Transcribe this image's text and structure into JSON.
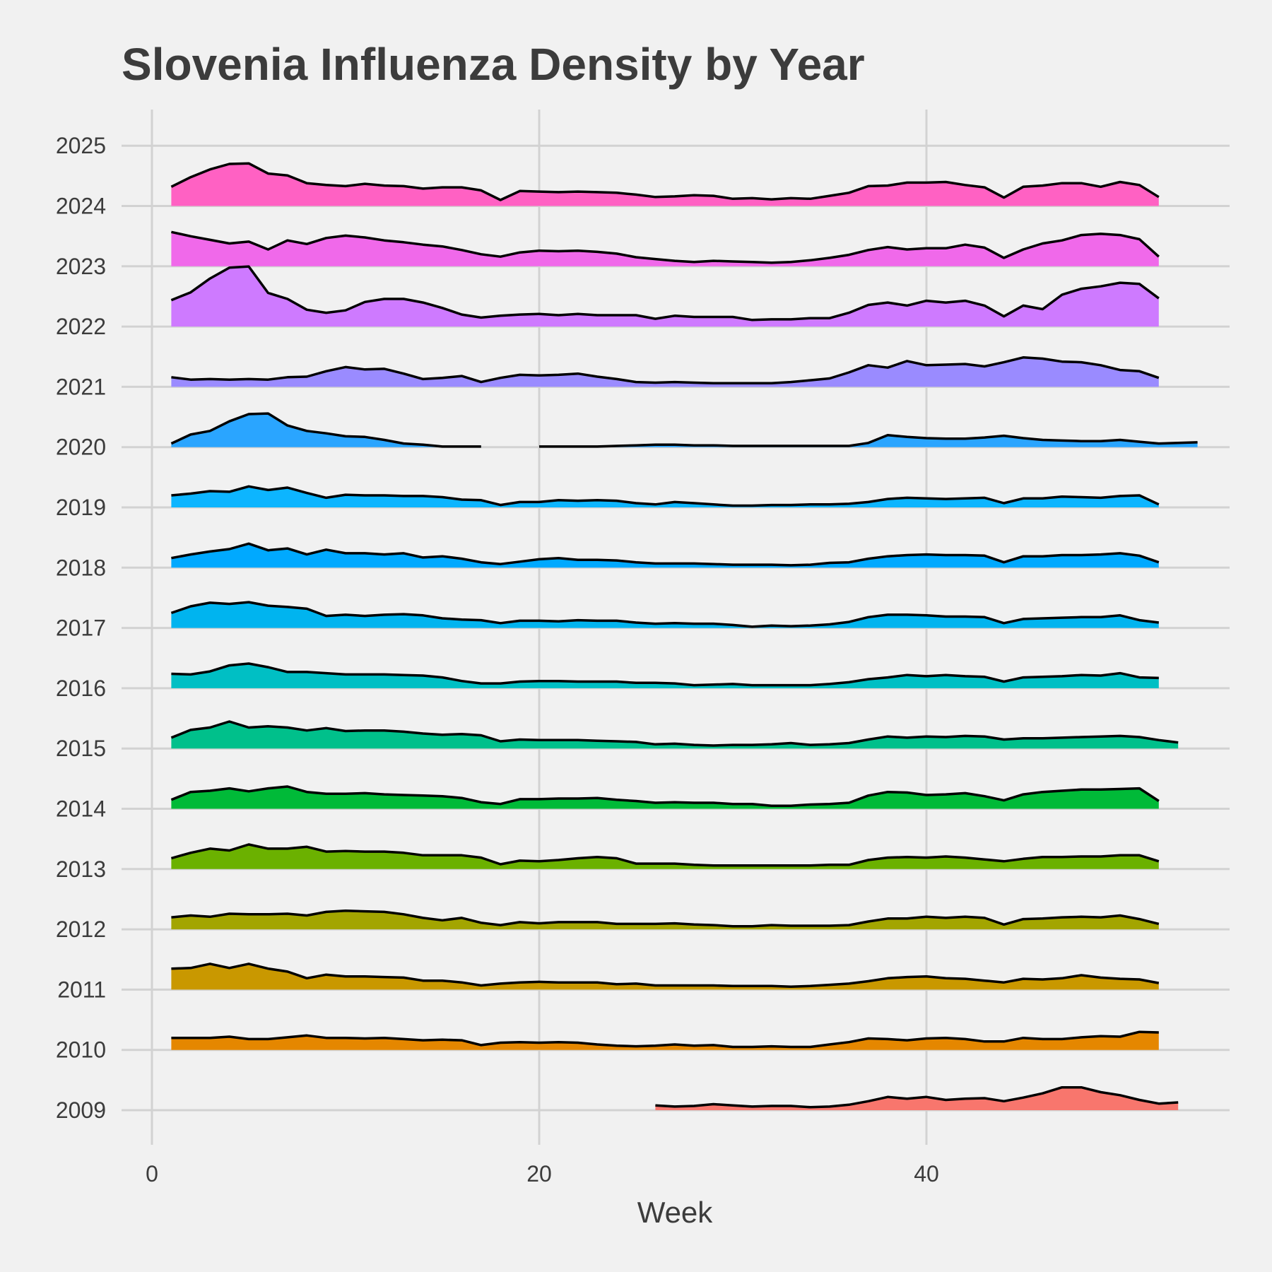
{
  "chart_data": {
    "type": "area",
    "subtype": "ridgeline",
    "title": "Slovenia Influenza Density by Year",
    "xlabel": "Week",
    "ylabel": "",
    "xlim": [
      0,
      55
    ],
    "ylim": [
      2008.4,
      2025.7
    ],
    "x_ticks": [
      "0",
      "20",
      "40"
    ],
    "y_ticks": [
      "2009",
      "2010",
      "2011",
      "2012",
      "2013",
      "2014",
      "2015",
      "2016",
      "2017",
      "2018",
      "2019",
      "2020",
      "2021",
      "2022",
      "2023",
      "2024",
      "2025"
    ],
    "grid": true,
    "legend": "none",
    "series": [
      {
        "year": 2009,
        "color": "#F8766D",
        "start_week": 26,
        "values": [
          0.08,
          0.06,
          0.07,
          0.1,
          0.08,
          0.06,
          0.07,
          0.07,
          0.05,
          0.06,
          0.09,
          0.15,
          0.22,
          0.19,
          0.22,
          0.17,
          0.19,
          0.2,
          0.15,
          0.21,
          0.28,
          0.38,
          0.38,
          0.3,
          0.25,
          0.17,
          0.11,
          0.13
        ]
      },
      {
        "year": 2010,
        "color": "#E58700",
        "start_week": 1,
        "values": [
          0.2,
          0.2,
          0.2,
          0.22,
          0.18,
          0.18,
          0.21,
          0.24,
          0.2,
          0.2,
          0.19,
          0.2,
          0.18,
          0.16,
          0.17,
          0.16,
          0.08,
          0.12,
          0.13,
          0.12,
          0.13,
          0.12,
          0.09,
          0.07,
          0.06,
          0.07,
          0.09,
          0.07,
          0.08,
          0.05,
          0.05,
          0.06,
          0.05,
          0.05,
          0.09,
          0.13,
          0.19,
          0.18,
          0.16,
          0.19,
          0.2,
          0.18,
          0.14,
          0.14,
          0.2,
          0.18,
          0.18,
          0.21,
          0.23,
          0.22,
          0.3,
          0.29
        ]
      },
      {
        "year": 2011,
        "color": "#C99800",
        "start_week": 1,
        "values": [
          0.35,
          0.36,
          0.43,
          0.36,
          0.43,
          0.35,
          0.3,
          0.19,
          0.25,
          0.22,
          0.22,
          0.21,
          0.2,
          0.15,
          0.15,
          0.12,
          0.07,
          0.1,
          0.12,
          0.13,
          0.12,
          0.12,
          0.12,
          0.09,
          0.1,
          0.07,
          0.07,
          0.07,
          0.07,
          0.06,
          0.06,
          0.06,
          0.05,
          0.06,
          0.08,
          0.1,
          0.14,
          0.19,
          0.21,
          0.22,
          0.19,
          0.18,
          0.15,
          0.12,
          0.18,
          0.17,
          0.19,
          0.24,
          0.2,
          0.18,
          0.17,
          0.11
        ]
      },
      {
        "year": 2012,
        "color": "#A3A500",
        "start_week": 1,
        "values": [
          0.2,
          0.23,
          0.21,
          0.26,
          0.25,
          0.25,
          0.26,
          0.23,
          0.29,
          0.31,
          0.3,
          0.29,
          0.25,
          0.19,
          0.15,
          0.19,
          0.11,
          0.07,
          0.12,
          0.1,
          0.12,
          0.12,
          0.12,
          0.09,
          0.09,
          0.09,
          0.1,
          0.08,
          0.07,
          0.05,
          0.05,
          0.07,
          0.06,
          0.06,
          0.06,
          0.07,
          0.13,
          0.18,
          0.18,
          0.21,
          0.19,
          0.21,
          0.19,
          0.08,
          0.17,
          0.18,
          0.2,
          0.21,
          0.2,
          0.23,
          0.17,
          0.09
        ]
      },
      {
        "year": 2013,
        "color": "#6BB100",
        "start_week": 1,
        "values": [
          0.18,
          0.27,
          0.34,
          0.31,
          0.41,
          0.34,
          0.34,
          0.37,
          0.29,
          0.3,
          0.29,
          0.29,
          0.27,
          0.23,
          0.23,
          0.23,
          0.19,
          0.08,
          0.14,
          0.13,
          0.15,
          0.18,
          0.2,
          0.18,
          0.09,
          0.09,
          0.09,
          0.07,
          0.06,
          0.06,
          0.06,
          0.06,
          0.06,
          0.06,
          0.07,
          0.07,
          0.15,
          0.19,
          0.2,
          0.19,
          0.21,
          0.19,
          0.16,
          0.13,
          0.17,
          0.2,
          0.2,
          0.21,
          0.21,
          0.23,
          0.23,
          0.13
        ]
      },
      {
        "year": 2014,
        "color": "#00BA38",
        "start_week": 1,
        "values": [
          0.15,
          0.28,
          0.3,
          0.34,
          0.29,
          0.34,
          0.37,
          0.28,
          0.25,
          0.25,
          0.26,
          0.24,
          0.23,
          0.22,
          0.21,
          0.18,
          0.11,
          0.08,
          0.16,
          0.16,
          0.17,
          0.17,
          0.18,
          0.15,
          0.13,
          0.1,
          0.11,
          0.1,
          0.1,
          0.08,
          0.08,
          0.05,
          0.05,
          0.07,
          0.08,
          0.1,
          0.22,
          0.28,
          0.27,
          0.23,
          0.24,
          0.26,
          0.21,
          0.14,
          0.24,
          0.28,
          0.3,
          0.32,
          0.32,
          0.33,
          0.34,
          0.13
        ]
      },
      {
        "year": 2015,
        "color": "#00C08B",
        "start_week": 1,
        "values": [
          0.18,
          0.31,
          0.35,
          0.45,
          0.35,
          0.37,
          0.35,
          0.3,
          0.34,
          0.29,
          0.3,
          0.3,
          0.28,
          0.25,
          0.23,
          0.24,
          0.22,
          0.12,
          0.15,
          0.14,
          0.14,
          0.14,
          0.13,
          0.12,
          0.11,
          0.07,
          0.08,
          0.06,
          0.05,
          0.06,
          0.06,
          0.07,
          0.09,
          0.06,
          0.07,
          0.09,
          0.15,
          0.2,
          0.18,
          0.2,
          0.19,
          0.21,
          0.2,
          0.15,
          0.17,
          0.17,
          0.18,
          0.19,
          0.2,
          0.21,
          0.19,
          0.14,
          0.1
        ]
      },
      {
        "year": 2016,
        "color": "#00BFC4",
        "start_week": 1,
        "values": [
          0.24,
          0.23,
          0.28,
          0.38,
          0.41,
          0.35,
          0.27,
          0.27,
          0.25,
          0.23,
          0.23,
          0.23,
          0.22,
          0.21,
          0.18,
          0.12,
          0.08,
          0.08,
          0.11,
          0.12,
          0.12,
          0.11,
          0.11,
          0.11,
          0.09,
          0.09,
          0.08,
          0.05,
          0.06,
          0.07,
          0.05,
          0.05,
          0.05,
          0.05,
          0.07,
          0.1,
          0.15,
          0.18,
          0.22,
          0.2,
          0.22,
          0.2,
          0.19,
          0.11,
          0.18,
          0.19,
          0.2,
          0.22,
          0.21,
          0.25,
          0.18,
          0.17
        ]
      },
      {
        "year": 2017,
        "color": "#00B4EF",
        "start_week": 1,
        "values": [
          0.25,
          0.36,
          0.42,
          0.4,
          0.43,
          0.37,
          0.35,
          0.32,
          0.2,
          0.22,
          0.2,
          0.22,
          0.23,
          0.21,
          0.16,
          0.14,
          0.13,
          0.08,
          0.12,
          0.12,
          0.11,
          0.13,
          0.12,
          0.12,
          0.09,
          0.07,
          0.08,
          0.07,
          0.07,
          0.05,
          0.02,
          0.04,
          0.03,
          0.04,
          0.06,
          0.1,
          0.18,
          0.22,
          0.22,
          0.21,
          0.19,
          0.19,
          0.18,
          0.08,
          0.15,
          0.16,
          0.17,
          0.18,
          0.18,
          0.21,
          0.13,
          0.09
        ]
      },
      {
        "year": 2018,
        "color": "#00A9FF",
        "start_week": 1,
        "values": [
          0.16,
          0.22,
          0.27,
          0.31,
          0.4,
          0.29,
          0.32,
          0.22,
          0.3,
          0.24,
          0.24,
          0.22,
          0.24,
          0.17,
          0.19,
          0.15,
          0.09,
          0.06,
          0.1,
          0.14,
          0.16,
          0.13,
          0.13,
          0.12,
          0.09,
          0.07,
          0.07,
          0.07,
          0.06,
          0.05,
          0.05,
          0.05,
          0.04,
          0.05,
          0.08,
          0.09,
          0.15,
          0.19,
          0.21,
          0.22,
          0.21,
          0.21,
          0.2,
          0.09,
          0.19,
          0.19,
          0.21,
          0.21,
          0.22,
          0.24,
          0.2,
          0.09
        ]
      },
      {
        "year": 2019,
        "color": "#0DB5FF",
        "start_week": 1,
        "values": [
          0.2,
          0.23,
          0.27,
          0.26,
          0.35,
          0.29,
          0.33,
          0.24,
          0.16,
          0.21,
          0.2,
          0.2,
          0.19,
          0.19,
          0.17,
          0.13,
          0.12,
          0.04,
          0.09,
          0.09,
          0.12,
          0.11,
          0.12,
          0.11,
          0.07,
          0.05,
          0.09,
          0.07,
          0.05,
          0.03,
          0.03,
          0.04,
          0.04,
          0.05,
          0.05,
          0.06,
          0.09,
          0.14,
          0.16,
          0.15,
          0.14,
          0.15,
          0.16,
          0.07,
          0.15,
          0.15,
          0.18,
          0.17,
          0.16,
          0.19,
          0.2,
          0.05
        ]
      },
      {
        "year": 2020,
        "color": "#2AA5FF",
        "start_week": 1,
        "values": [
          0.06,
          0.21,
          0.27,
          0.43,
          0.55,
          0.56,
          0.36,
          0.27,
          0.23,
          0.18,
          0.17,
          0.12,
          0.06,
          0.04,
          0.01,
          0.01,
          0.01,
          null,
          null,
          0.01,
          0.01,
          0.01,
          0.01,
          0.02,
          0.03,
          0.04,
          0.04,
          0.03,
          0.03,
          0.02,
          0.02,
          0.02,
          0.02,
          0.02,
          0.02,
          0.02,
          0.07,
          0.2,
          0.17,
          0.15,
          0.14,
          0.14,
          0.16,
          0.19,
          0.15,
          0.12,
          0.11,
          0.1,
          0.1,
          0.12,
          0.09,
          0.06,
          0.07,
          0.08
        ]
      },
      {
        "year": 2021,
        "color": "#9A8BFF",
        "start_week": 1,
        "values": [
          0.16,
          0.12,
          0.13,
          0.12,
          0.13,
          0.12,
          0.16,
          0.17,
          0.26,
          0.33,
          0.29,
          0.3,
          0.22,
          0.13,
          0.15,
          0.18,
          0.08,
          0.15,
          0.2,
          0.19,
          0.2,
          0.22,
          0.17,
          0.13,
          0.08,
          0.07,
          0.08,
          0.07,
          0.06,
          0.06,
          0.06,
          0.06,
          0.08,
          0.11,
          0.14,
          0.24,
          0.36,
          0.32,
          0.43,
          0.36,
          0.37,
          0.38,
          0.34,
          0.41,
          0.49,
          0.47,
          0.42,
          0.41,
          0.36,
          0.28,
          0.26,
          0.15
        ]
      },
      {
        "year": 2022,
        "color": "#CE7AFF",
        "start_week": 1,
        "values": [
          0.44,
          0.57,
          0.8,
          0.98,
          1.0,
          0.56,
          0.46,
          0.28,
          0.23,
          0.27,
          0.41,
          0.46,
          0.46,
          0.4,
          0.31,
          0.2,
          0.15,
          0.18,
          0.2,
          0.21,
          0.19,
          0.21,
          0.19,
          0.19,
          0.19,
          0.13,
          0.18,
          0.16,
          0.16,
          0.16,
          0.11,
          0.12,
          0.12,
          0.14,
          0.14,
          0.23,
          0.36,
          0.4,
          0.35,
          0.43,
          0.4,
          0.43,
          0.35,
          0.17,
          0.35,
          0.29,
          0.53,
          0.63,
          0.67,
          0.73,
          0.71,
          0.47
        ]
      },
      {
        "year": 2023,
        "color": "#F069EA",
        "start_week": 1,
        "values": [
          0.57,
          0.5,
          0.44,
          0.38,
          0.41,
          0.28,
          0.43,
          0.37,
          0.47,
          0.51,
          0.48,
          0.43,
          0.4,
          0.36,
          0.33,
          0.27,
          0.2,
          0.16,
          0.23,
          0.26,
          0.25,
          0.26,
          0.24,
          0.21,
          0.15,
          0.12,
          0.09,
          0.07,
          0.09,
          0.08,
          0.07,
          0.06,
          0.07,
          0.1,
          0.14,
          0.19,
          0.27,
          0.32,
          0.28,
          0.3,
          0.3,
          0.36,
          0.31,
          0.14,
          0.28,
          0.38,
          0.43,
          0.52,
          0.54,
          0.52,
          0.45,
          0.16
        ]
      },
      {
        "year": 2024,
        "color": "#FF61C3",
        "start_week": 1,
        "values": [
          0.32,
          0.48,
          0.61,
          0.7,
          0.71,
          0.54,
          0.51,
          0.38,
          0.35,
          0.33,
          0.37,
          0.34,
          0.33,
          0.29,
          0.31,
          0.31,
          0.26,
          0.1,
          0.25,
          0.24,
          0.23,
          0.24,
          0.23,
          0.22,
          0.19,
          0.15,
          0.16,
          0.18,
          0.17,
          0.12,
          0.13,
          0.11,
          0.13,
          0.12,
          0.17,
          0.22,
          0.33,
          0.34,
          0.39,
          0.39,
          0.4,
          0.35,
          0.31,
          0.14,
          0.32,
          0.34,
          0.38,
          0.38,
          0.32,
          0.4,
          0.35,
          0.15
        ]
      }
    ]
  }
}
